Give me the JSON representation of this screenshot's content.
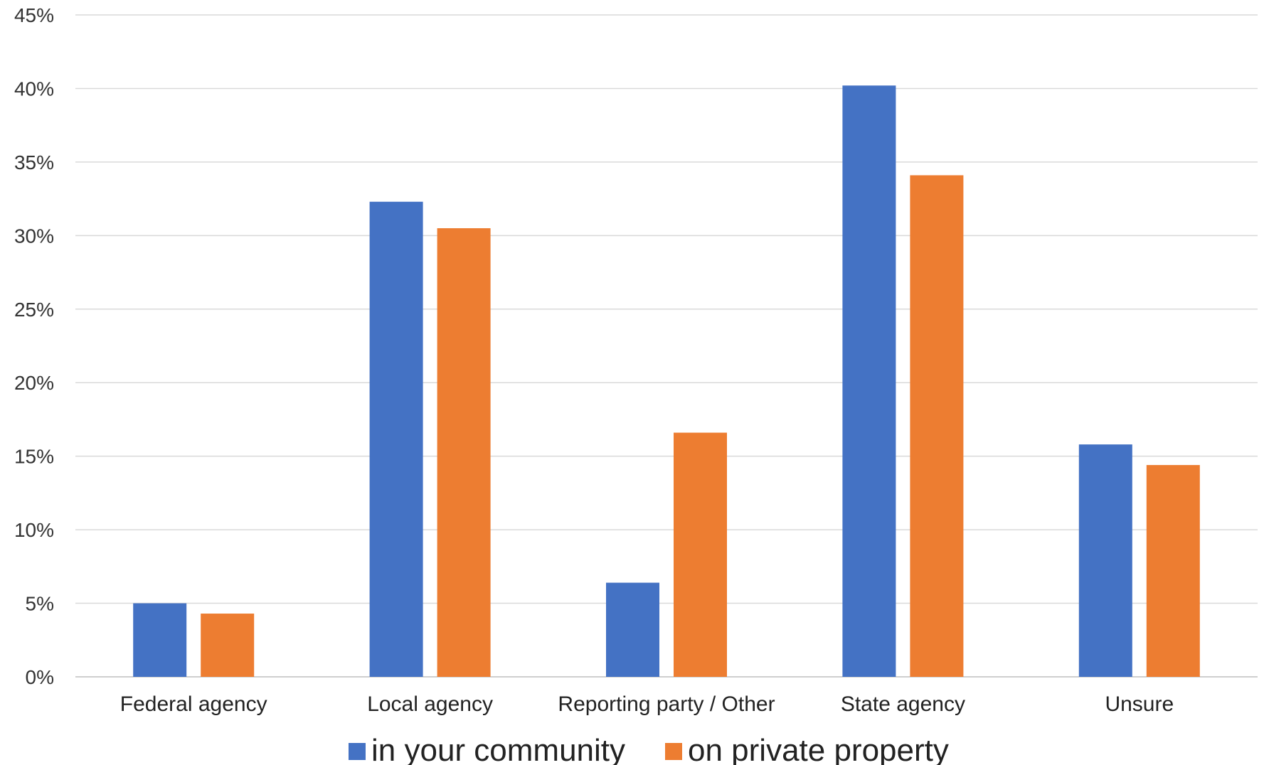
{
  "chart_data": {
    "type": "bar",
    "categories": [
      "Federal agency",
      "Local agency",
      "Reporting party / Other",
      "State agency",
      "Unsure"
    ],
    "series": [
      {
        "name": "in your community",
        "color": "#4472C4",
        "values": [
          5.0,
          32.3,
          6.4,
          40.2,
          15.8
        ]
      },
      {
        "name": "on private property",
        "color": "#ED7D31",
        "values": [
          4.3,
          30.5,
          16.6,
          34.1,
          14.4
        ]
      }
    ],
    "yticks": [
      "0%",
      "5%",
      "10%",
      "15%",
      "20%",
      "25%",
      "30%",
      "35%",
      "40%",
      "45%"
    ],
    "ylim": [
      0,
      45
    ],
    "grid": true,
    "legend_position": "bottom"
  }
}
